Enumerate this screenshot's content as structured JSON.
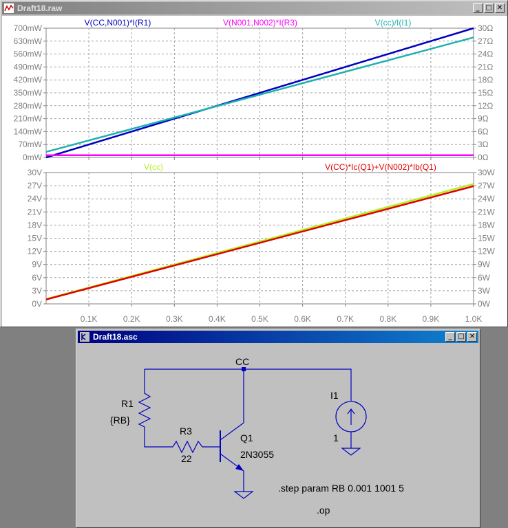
{
  "plot_window": {
    "title": "Draft18.raw",
    "buttons": [
      "_",
      "□",
      "✕"
    ],
    "top_pane": {
      "traces": [
        {
          "label": "V(CC,N001)*I(R1)",
          "color": "#0000c0"
        },
        {
          "label": "V(N001,N002)*I(R3)",
          "color": "#ff00ff"
        },
        {
          "label": "V(cc)/I(I1)",
          "color": "#20b0b0"
        }
      ],
      "left_ticks": [
        "700mW",
        "630mW",
        "560mW",
        "490mW",
        "420mW",
        "350mW",
        "280mW",
        "210mW",
        "140mW",
        "70mW",
        "0mW"
      ],
      "right_ticks": [
        "30Ω",
        "27Ω",
        "24Ω",
        "21Ω",
        "18Ω",
        "15Ω",
        "12Ω",
        "9Ω",
        "6Ω",
        "3Ω",
        "0Ω"
      ]
    },
    "bottom_pane": {
      "traces": [
        {
          "label": "V(cc)",
          "color": "#b0f020"
        },
        {
          "label": "V(CC)*Ic(Q1)+V(N002)*Ib(Q1)",
          "color": "#e00000"
        }
      ],
      "left_ticks": [
        "30V",
        "27V",
        "24V",
        "21V",
        "18V",
        "15V",
        "12V",
        "9V",
        "6V",
        "3V",
        "0V"
      ],
      "right_ticks": [
        "30W",
        "27W",
        "24W",
        "21W",
        "18W",
        "15W",
        "12W",
        "9W",
        "6W",
        "3W",
        "0W"
      ]
    },
    "x_ticks": [
      "0.1K",
      "0.2K",
      "0.3K",
      "0.4K",
      "0.5K",
      "0.6K",
      "0.7K",
      "0.8K",
      "0.9K",
      "1.0K"
    ]
  },
  "chart_data": [
    {
      "type": "line",
      "x": [
        0,
        1000
      ],
      "series": [
        {
          "name": "V(CC,N001)*I(R1)",
          "values": [
            0,
            700
          ]
        },
        {
          "name": "V(N001,N002)*I(R3)",
          "values": [
            12,
            12
          ]
        },
        {
          "name": "V(cc)/I(I1)",
          "values": [
            30,
            650
          ]
        }
      ],
      "ylabel": "",
      "ylim": [
        0,
        700
      ],
      "y2lim": [
        0,
        30
      ],
      "grid": true
    },
    {
      "type": "line",
      "x": [
        0,
        1000
      ],
      "series": [
        {
          "name": "V(cc)",
          "values": [
            1.1,
            27.4
          ]
        },
        {
          "name": "V(CC)*Ic(Q1)+V(N002)*Ib(Q1)",
          "values": [
            1.0,
            26.9
          ]
        }
      ],
      "ylim": [
        0,
        30
      ],
      "grid": true
    }
  ],
  "schematic_window": {
    "title": "Draft18.asc",
    "buttons": [
      "_",
      "□",
      "✕"
    ],
    "net_cc": "CC",
    "r1_name": "R1",
    "r1_value": "{RB}",
    "r3_name": "R3",
    "r3_value": "22",
    "q1_name": "Q1",
    "q1_model": "2N3055",
    "i1_name": "I1",
    "i1_value": "1",
    "directive_step": ".step param RB 0.001 1001 5",
    "directive_op": ".op"
  }
}
